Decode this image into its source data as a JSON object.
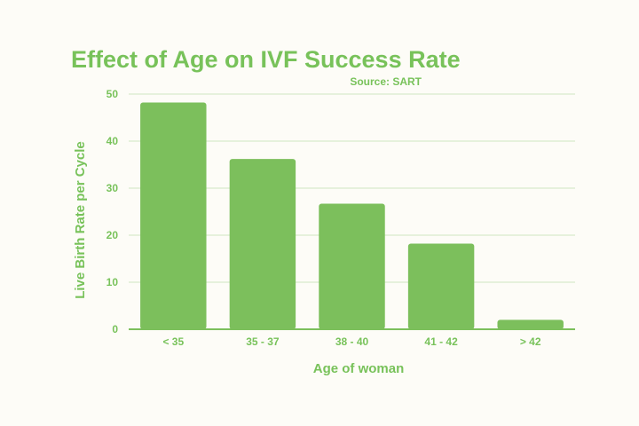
{
  "colors": {
    "background": "#fdfcf7",
    "bar": "#7cbf5c",
    "text": "#78c25a",
    "grid": "#cfe6c0",
    "axis": "#7cbf5c"
  },
  "chart_data": {
    "type": "bar",
    "title": "Effect of Age on IVF Success Rate",
    "subtitle": "Source: SART",
    "xlabel": "Age of woman",
    "ylabel": "Live Birth Rate per Cycle",
    "categories": [
      "< 35",
      "35 - 37",
      "38 - 40",
      "41 - 42",
      "> 42"
    ],
    "values": [
      48.2,
      36.2,
      26.7,
      18.2,
      2.0
    ],
    "ylim": [
      0,
      50
    ],
    "yticks": [
      0,
      10,
      20,
      30,
      40,
      50
    ],
    "grid": true,
    "legend": "none"
  }
}
